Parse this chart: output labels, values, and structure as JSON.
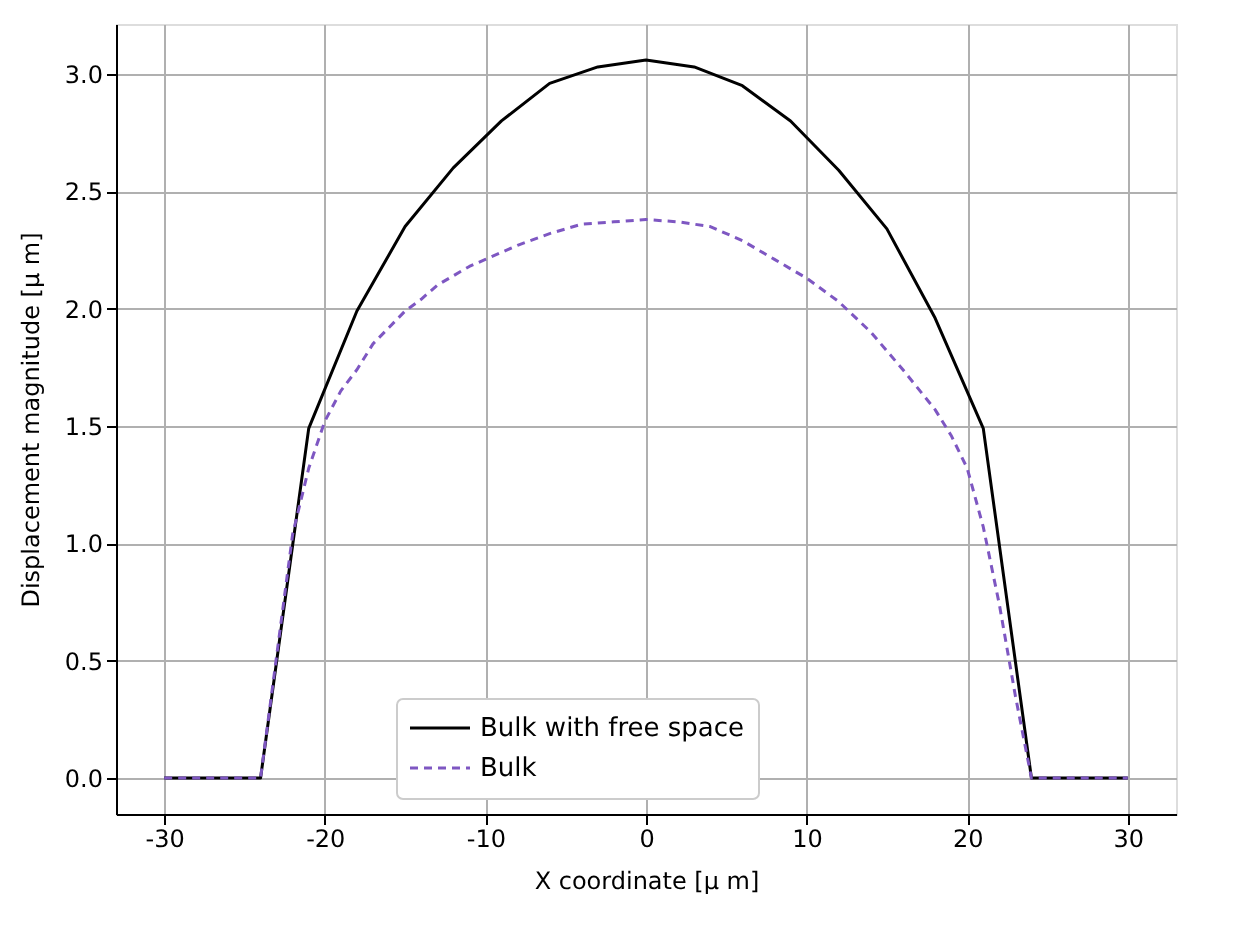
{
  "chart_data": {
    "type": "line",
    "xlabel": "X coordinate [μ m]",
    "ylabel": "Displacement magnitude [μ m]",
    "xlim": [
      -33,
      33
    ],
    "ylim": [
      -0.153,
      3.213
    ],
    "xticks": [
      -30,
      -20,
      -10,
      0,
      10,
      20,
      30
    ],
    "yticks": [
      {
        "value": 0,
        "label": "0.0"
      },
      0.5,
      {
        "value": 1,
        "label": "1.0"
      },
      1.5,
      {
        "value": 2,
        "label": "2.0"
      },
      2.5,
      {
        "value": 3,
        "label": "3.0"
      }
    ],
    "grid": true,
    "legend": "bottom",
    "marker": "none",
    "series": [
      {
        "name": "Bulk with free space",
        "color": "#000000",
        "line_style": "solid",
        "x": [
          -30,
          -27,
          -24,
          -21,
          -18,
          -15,
          -12,
          -9,
          -6,
          -3,
          0,
          3,
          6,
          9,
          12,
          15,
          18,
          21,
          24,
          27,
          30
        ],
        "values": [
          0,
          0,
          0,
          1.49,
          1.99,
          2.35,
          2.6,
          2.8,
          2.96,
          3.03,
          3.06,
          3.03,
          2.95,
          2.8,
          2.59,
          2.34,
          1.96,
          1.49,
          0,
          0,
          0
        ]
      },
      {
        "name": "Bulk",
        "color": "#7e57c2",
        "line_style": "dashed",
        "x": [
          -30,
          -27,
          -24,
          -23,
          -22,
          -21,
          -20,
          -19,
          -18,
          -17,
          -16,
          -15,
          -14,
          -13,
          -12,
          -11,
          -10,
          -8,
          -6,
          -4,
          -2,
          0,
          2,
          4,
          6,
          8,
          10,
          12,
          14,
          16,
          18,
          19,
          20,
          21,
          22,
          23,
          24,
          27,
          30
        ],
        "values": [
          0,
          0,
          0,
          0.52,
          1.04,
          1.32,
          1.52,
          1.65,
          1.74,
          1.85,
          1.92,
          1.99,
          2.04,
          2.1,
          2.14,
          2.18,
          2.21,
          2.27,
          2.32,
          2.36,
          2.37,
          2.38,
          2.37,
          2.35,
          2.29,
          2.21,
          2.13,
          2.03,
          1.9,
          1.74,
          1.57,
          1.46,
          1.32,
          1.07,
          0.74,
          0.35,
          0,
          0,
          0
        ]
      }
    ]
  }
}
